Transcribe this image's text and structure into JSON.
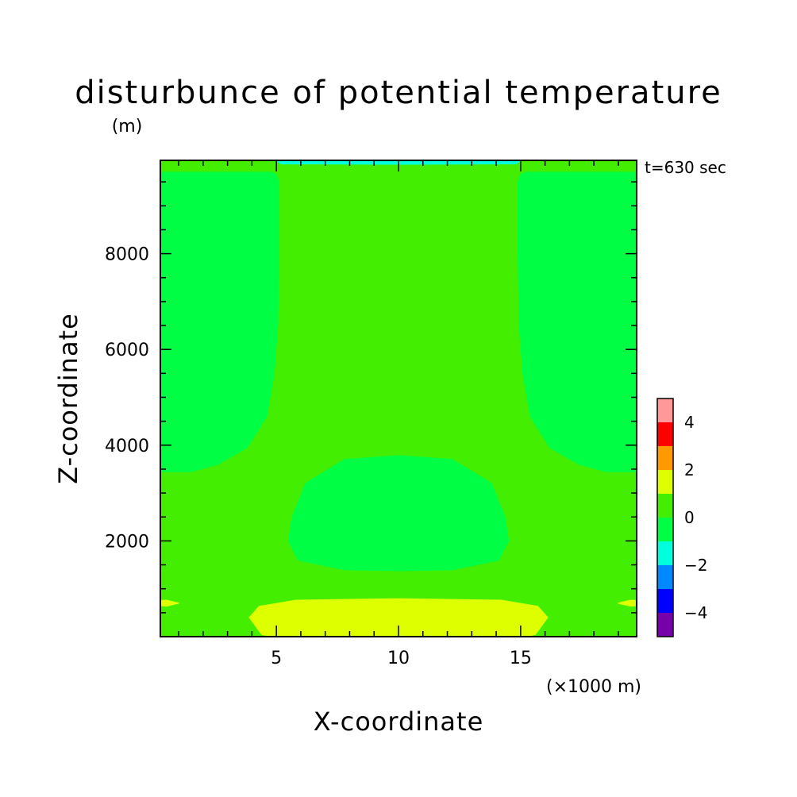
{
  "chart_data": {
    "type": "contour",
    "title": "disturbunce of potential temperature",
    "ylabel_unit": "(m)",
    "time_label": "t=630 sec",
    "xlabel": "X-coordinate",
    "ylabel": "Z-coordinate",
    "x_unit": "(×1000 m)",
    "xlim": [
      0.25,
      19.75
    ],
    "ylim": [
      0,
      9950
    ],
    "x_ticks": [
      5,
      10,
      15
    ],
    "x_tick_labels": [
      "5",
      "10",
      "15"
    ],
    "y_ticks": [
      2000,
      4000,
      6000,
      8000
    ],
    "y_tick_labels": [
      "2000",
      "4000",
      "6000",
      "8000"
    ],
    "background_level": {
      "range": [
        0,
        1
      ],
      "color": "#44ee00"
    },
    "regions": [
      {
        "name": "left-upper-negative",
        "range": [
          -1,
          0
        ],
        "color": "#00ff44",
        "points": [
          [
            0.25,
            3450
          ],
          [
            1.5,
            3450
          ],
          [
            2.6,
            3600
          ],
          [
            3.8,
            3950
          ],
          [
            4.6,
            4600
          ],
          [
            4.9,
            5500
          ],
          [
            5.05,
            6500
          ],
          [
            5.1,
            8000
          ],
          [
            5.1,
            9500
          ],
          [
            5.0,
            9650
          ],
          [
            4.8,
            9700
          ],
          [
            0.25,
            9700
          ]
        ]
      },
      {
        "name": "right-upper-negative",
        "range": [
          -1,
          0
        ],
        "color": "#00ff44",
        "points": [
          [
            19.75,
            3450
          ],
          [
            18.5,
            3450
          ],
          [
            17.4,
            3600
          ],
          [
            16.2,
            3950
          ],
          [
            15.4,
            4600
          ],
          [
            15.1,
            5500
          ],
          [
            14.95,
            6500
          ],
          [
            14.9,
            8000
          ],
          [
            14.9,
            9500
          ],
          [
            15.0,
            9650
          ],
          [
            15.2,
            9700
          ],
          [
            19.75,
            9700
          ]
        ]
      },
      {
        "name": "center-negative",
        "range": [
          -1,
          0
        ],
        "color": "#00ff44",
        "points": [
          [
            5.5,
            2000
          ],
          [
            5.65,
            2500
          ],
          [
            6.2,
            3200
          ],
          [
            7.8,
            3700
          ],
          [
            10.0,
            3780
          ],
          [
            12.2,
            3700
          ],
          [
            13.8,
            3200
          ],
          [
            14.35,
            2500
          ],
          [
            14.5,
            2000
          ],
          [
            14.1,
            1600
          ],
          [
            12.2,
            1400
          ],
          [
            10.0,
            1380
          ],
          [
            7.8,
            1400
          ],
          [
            5.9,
            1600
          ]
        ]
      },
      {
        "name": "bottom-positive",
        "range": [
          1,
          2
        ],
        "color": "#ddff00",
        "points": [
          [
            3.9,
            400
          ],
          [
            4.3,
            630
          ],
          [
            5.8,
            760
          ],
          [
            10.0,
            790
          ],
          [
            14.2,
            760
          ],
          [
            15.7,
            630
          ],
          [
            16.1,
            400
          ],
          [
            15.6,
            50
          ],
          [
            15.2,
            0
          ],
          [
            4.8,
            0
          ],
          [
            4.4,
            50
          ]
        ]
      },
      {
        "name": "left-edge-positive",
        "range": [
          1,
          2
        ],
        "color": "#ddff00",
        "points": [
          [
            0.25,
            750
          ],
          [
            0.5,
            760
          ],
          [
            1.0,
            700
          ],
          [
            0.5,
            640
          ],
          [
            0.25,
            650
          ]
        ]
      },
      {
        "name": "right-edge-positive",
        "range": [
          1,
          2
        ],
        "color": "#ddff00",
        "points": [
          [
            19.75,
            750
          ],
          [
            19.5,
            760
          ],
          [
            19.0,
            700
          ],
          [
            19.5,
            640
          ],
          [
            19.75,
            650
          ]
        ]
      },
      {
        "name": "top-edge-cyan",
        "range": [
          -2,
          -1
        ],
        "color": "#00ffdd",
        "points": [
          [
            5.0,
            9950
          ],
          [
            5.2,
            9880
          ],
          [
            10.0,
            9870
          ],
          [
            14.8,
            9880
          ],
          [
            15.0,
            9950
          ]
        ]
      }
    ],
    "colorbar": {
      "levels": [
        {
          "range": [
            4,
            5
          ],
          "color": "#ff9999"
        },
        {
          "range": [
            3,
            4
          ],
          "color": "#ff0000"
        },
        {
          "range": [
            2,
            3
          ],
          "color": "#ff9900"
        },
        {
          "range": [
            1,
            2
          ],
          "color": "#ddff00"
        },
        {
          "range": [
            0,
            1
          ],
          "color": "#44ee00"
        },
        {
          "range": [
            -1,
            0
          ],
          "color": "#00ff44"
        },
        {
          "range": [
            -2,
            -1
          ],
          "color": "#00ffdd"
        },
        {
          "range": [
            -3,
            -2
          ],
          "color": "#0088ff"
        },
        {
          "range": [
            -4,
            -3
          ],
          "color": "#0000ff"
        },
        {
          "range": [
            -5,
            -4
          ],
          "color": "#7700aa"
        }
      ],
      "tick_values": [
        4,
        2,
        0,
        -2,
        -4
      ],
      "tick_labels": [
        "4",
        "2",
        "0",
        "−2",
        "−4"
      ]
    }
  }
}
